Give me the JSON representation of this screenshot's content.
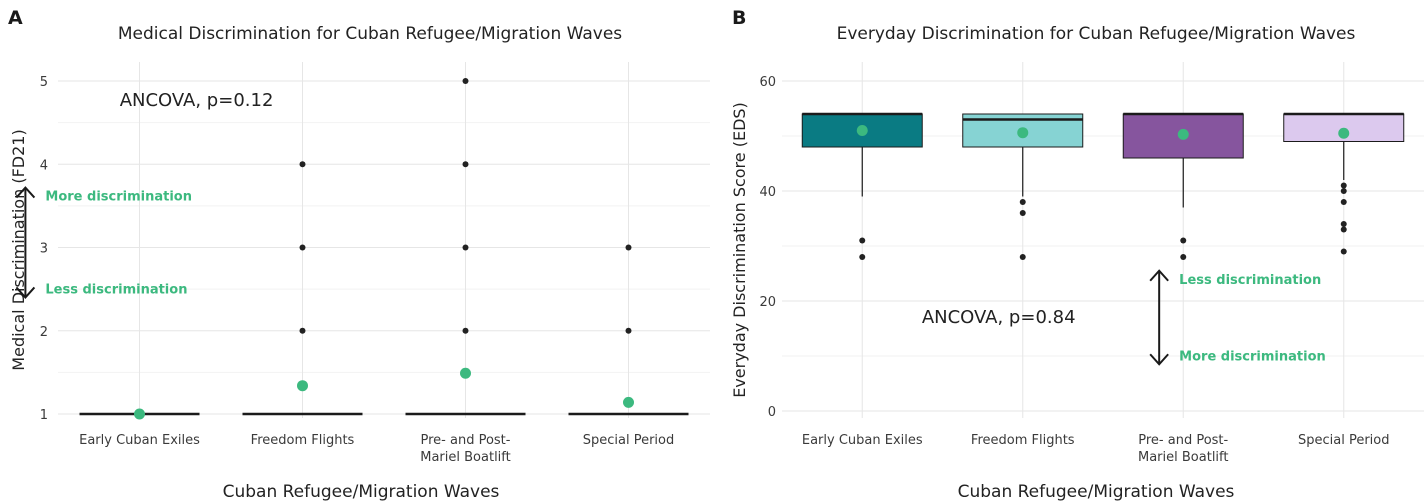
{
  "colors": {
    "mean_point": "#3cb97f",
    "note_text": "#3cb97f",
    "outlier": "#222222",
    "median_line": "#1b1b1b"
  },
  "chart_data": [
    {
      "panel": "A",
      "type": "box",
      "title": "Medical Discrimination for Cuban Refugee/Migration Waves",
      "xlabel": "Cuban Refugee/Migration Waves",
      "ylabel": "Medical Discrimination (FD21)",
      "ylim": [
        0.97,
        5.4
      ],
      "yticks": [
        1,
        2,
        3,
        4,
        5
      ],
      "grid": true,
      "categories": [
        "Early Cuban Exiles",
        "Freedom Flights",
        "Pre- and Post-\nMariel Boatlift",
        "Special Period"
      ],
      "box_colors": [
        "#1b1b1b",
        "#1b1b1b",
        "#1b1b1b",
        "#1b1b1b"
      ],
      "boxes": [
        {
          "q1": 1,
          "median": 1,
          "q3": 1,
          "whisker_low": 1,
          "whisker_high": 1,
          "mean": 1.0,
          "outliers": []
        },
        {
          "q1": 1,
          "median": 1,
          "q3": 1,
          "whisker_low": 1,
          "whisker_high": 1,
          "mean": 1.34,
          "outliers": [
            2,
            3,
            4
          ]
        },
        {
          "q1": 1,
          "median": 1,
          "q3": 1,
          "whisker_low": 1,
          "whisker_high": 1,
          "mean": 1.49,
          "outliers": [
            2,
            3,
            4,
            5
          ]
        },
        {
          "q1": 1,
          "median": 1,
          "q3": 1,
          "whisker_low": 1,
          "whisker_high": 1,
          "mean": 1.14,
          "outliers": [
            2,
            3
          ]
        }
      ],
      "annotation": {
        "text": "ANCOVA, p=0.12",
        "x": 1.35,
        "y": 4.7
      },
      "arrow": {
        "x": 0.3,
        "y_top": 3.72,
        "y_bottom": 2.4
      },
      "arrow_top_label": "More discrimination",
      "arrow_bottom_label": "Less discrimination"
    },
    {
      "panel": "B",
      "type": "box",
      "title": "Everyday Discrimination for Cuban Refugee/Migration Waves",
      "xlabel": "Cuban Refugee/Migration Waves",
      "ylabel": "Everyday Discrimination Score (EDS)",
      "ylim": [
        -1,
        63
      ],
      "yticks": [
        0,
        20,
        40,
        60
      ],
      "grid": true,
      "categories": [
        "Early Cuban Exiles",
        "Freedom Flights",
        "Pre- and Post-\nMariel Boatlift",
        "Special Period"
      ],
      "box_colors": [
        "#0a7b83",
        "#86d3d3",
        "#86559e",
        "#dcc9ee"
      ],
      "boxes": [
        {
          "q1": 48,
          "median": 54,
          "q3": 54,
          "whisker_low": 39,
          "whisker_high": 54,
          "mean": 51,
          "outliers": [
            31,
            28
          ]
        },
        {
          "q1": 48,
          "median": 53,
          "q3": 54,
          "whisker_low": 39,
          "whisker_high": 54,
          "mean": 50.6,
          "outliers": [
            38,
            36,
            28
          ]
        },
        {
          "q1": 46,
          "median": 54,
          "q3": 54,
          "whisker_low": 37,
          "whisker_high": 54,
          "mean": 50.3,
          "outliers": [
            31,
            28
          ]
        },
        {
          "q1": 49,
          "median": 54,
          "q3": 54,
          "whisker_low": 42,
          "whisker_high": 54,
          "mean": 50.5,
          "outliers": [
            41,
            40,
            38,
            34,
            33,
            29
          ]
        }
      ],
      "annotation": {
        "text": "ANCOVA, p=0.84",
        "x": 1.85,
        "y": 16
      },
      "arrow": {
        "x": 2.85,
        "y_top": 25.5,
        "y_bottom": 8.5
      },
      "arrow_top_label": "Less discrimination",
      "arrow_bottom_label": "More discrimination"
    }
  ]
}
